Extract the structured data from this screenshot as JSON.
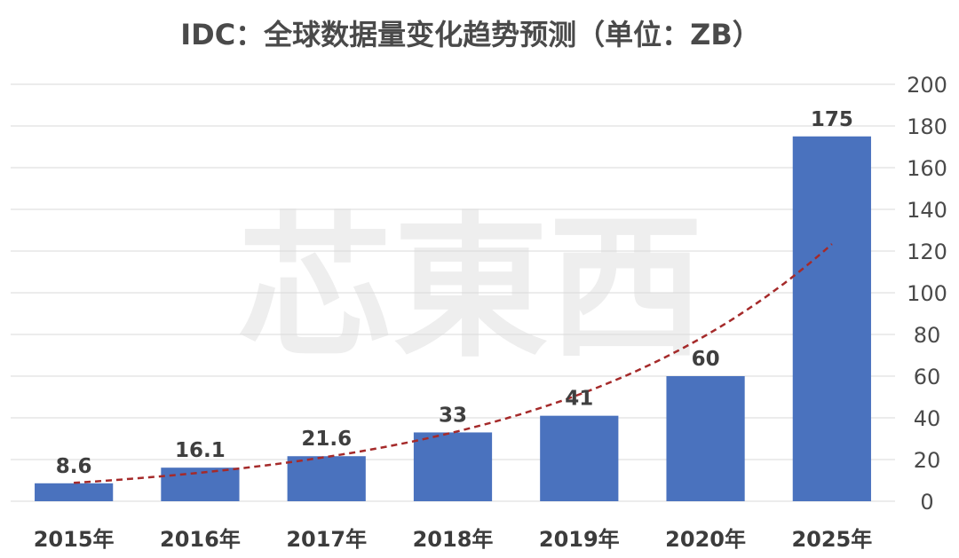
{
  "watermark": "芯東西",
  "chart_data": {
    "type": "bar",
    "title": "IDC：全球数据量变化趋势预测（单位：ZB）",
    "categories": [
      "2015年",
      "2016年",
      "2017年",
      "2018年",
      "2019年",
      "2020年",
      "2025年"
    ],
    "values": [
      8.6,
      16.1,
      21.6,
      33,
      41,
      60,
      175
    ],
    "data_labels": [
      "8.6",
      "16.1",
      "21.6",
      "33",
      "41",
      "60",
      "175"
    ],
    "ylim": [
      0,
      200
    ],
    "yticks": [
      "0",
      "20",
      "40",
      "60",
      "80",
      "100",
      "120",
      "140",
      "160",
      "180",
      "200"
    ],
    "y_axis_position": "right",
    "grid": true,
    "trendline": {
      "type": "exponential",
      "style": "dashed",
      "color": "#a52a2a"
    },
    "bar_color": "#4a72be",
    "grid_color": "#d9d9d9",
    "text_color": "#404040"
  }
}
